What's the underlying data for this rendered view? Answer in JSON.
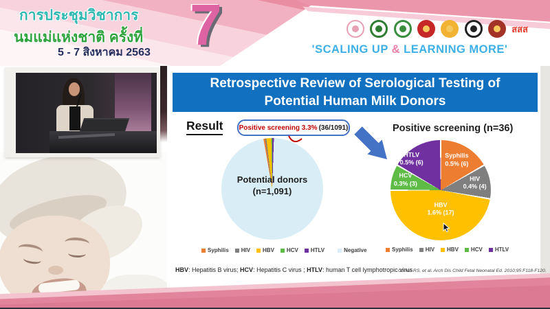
{
  "header": {
    "title_line1": "การประชุมวิชาการ",
    "title_line2": "นมแม่แห่งชาติ ครั้งที่",
    "date_line": "5 - 7 สิงหาคม 2563",
    "edition_number": "7",
    "slogan_open": "'SCALING UP ",
    "slogan_amp": "&",
    "slogan_close": " LEARNING MORE'",
    "logos": [
      {
        "name": "breastfeeding-foundation-logo",
        "color": "#e8a0b4",
        "type": "outline"
      },
      {
        "name": "health-department-logo",
        "color": "#2e7d32",
        "type": "ring"
      },
      {
        "name": "public-health-logo",
        "color": "#388e3c",
        "type": "ring"
      },
      {
        "name": "royal-emblem-logo",
        "color": "#c62828",
        "type": "solid"
      },
      {
        "name": "royal-college-logo",
        "color": "#f2b234",
        "type": "solid"
      },
      {
        "name": "university-seal-logo",
        "color": "#212121",
        "type": "ring"
      },
      {
        "name": "institute-seal-logo",
        "color": "#a33327",
        "type": "solid"
      },
      {
        "name": "thai-health-fund-logo",
        "color": "#e23b2e",
        "type": "text",
        "text": "สสส"
      }
    ]
  },
  "slide": {
    "title": "Retrospective Review of Serological Testing of Potential Human Milk Donors",
    "result_label": "Result",
    "callout": {
      "highlight": "Positive screening 3.3%",
      "detail": "(36/1091)"
    },
    "footnote": [
      {
        "term": "HBV",
        "def": ": Hepatitis B virus; "
      },
      {
        "term": "HCV",
        "def": ": Hepatitis C virus ; "
      },
      {
        "term": "HTLV",
        "def": ": human T cell lymphotropic virus"
      }
    ],
    "citation": "Cohen RS, et al. Arch Dis Child Fetal Neonatal Ed. 2010;95:F118-F120."
  },
  "chart_data": [
    {
      "type": "pie",
      "title": "Potential donors (n=1,091)",
      "n": 1091,
      "start_angle_deg": -10,
      "center_label": [
        "Potential donors",
        "(n=1,091)"
      ],
      "slices": [
        {
          "label": "Syphilis",
          "value": 6,
          "color": "#ed7d31"
        },
        {
          "label": "HIV",
          "value": 4,
          "color": "#7f7f7f"
        },
        {
          "label": "HBV",
          "value": 17,
          "color": "#ffc000"
        },
        {
          "label": "HCV",
          "value": 3,
          "color": "#5dbb46"
        },
        {
          "label": "HTLV",
          "value": 6,
          "color": "#7030a0"
        },
        {
          "label": "Negative",
          "value": 1055,
          "color": "#d9edf7"
        }
      ]
    },
    {
      "type": "pie",
      "title": "Positive screening (n=36)",
      "n": 36,
      "start_angle_deg": 0,
      "slices": [
        {
          "label": "Syphilis",
          "value": 6,
          "pct_label": "0.5% (6)",
          "color": "#ed7d31",
          "label_pos": [
            66,
            20
          ]
        },
        {
          "label": "HIV",
          "value": 4,
          "pct_label": "0.4% (4)",
          "color": "#7f7f7f",
          "label_pos": [
            84,
            43
          ]
        },
        {
          "label": "HBV",
          "value": 17,
          "pct_label": "1.6% (17)",
          "color": "#ffc000",
          "label_pos": [
            50,
            69
          ]
        },
        {
          "label": "HCV",
          "value": 3,
          "pct_label": "0.3% (3)",
          "color": "#5dbb46",
          "label_pos": [
            15,
            40
          ]
        },
        {
          "label": "HTLV",
          "value": 6,
          "pct_label": "0.5% (6)",
          "color": "#7030a0",
          "label_pos": [
            21,
            19
          ]
        }
      ]
    }
  ],
  "colors": {
    "title_bar": "#1170bf",
    "callout_border": "#4472c4",
    "callout_text": "#c00000",
    "arrow_blue": "#4472c4",
    "banner_pink": "#e98da3",
    "slogan_blue": "#3eb0e5",
    "slogan_pink": "#e87da6"
  }
}
